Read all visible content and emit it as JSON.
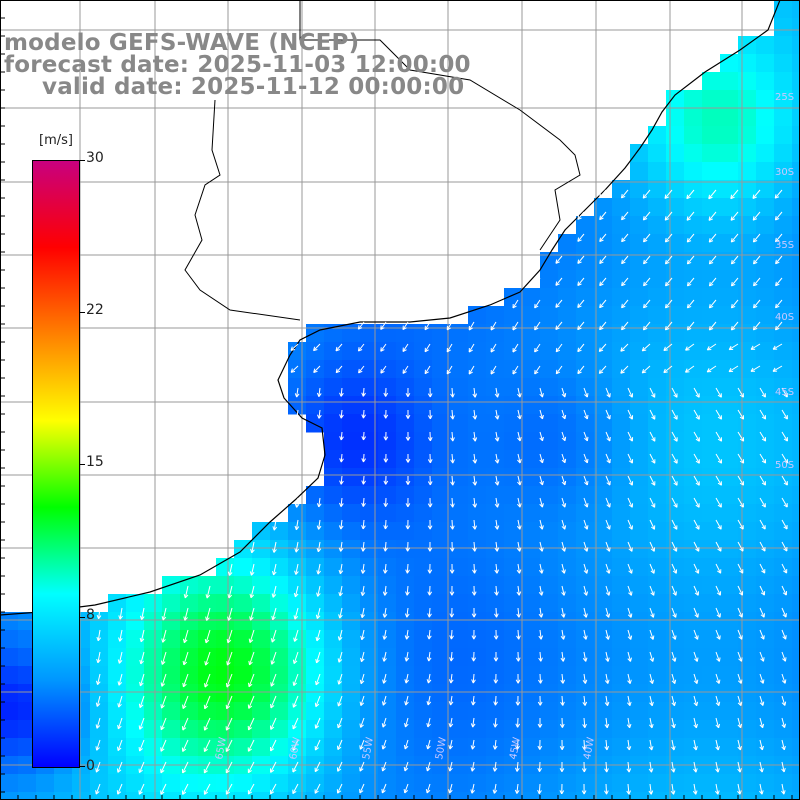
{
  "titles": {
    "line1": "modelo GEFS-WAVE (NCEP)",
    "line2": "forecast date: 2025-11-03 12:00:00",
    "line3": "valid date: 2025-11-12 00:00:00"
  },
  "colorbar": {
    "unit": "[m/s]",
    "ticks": [
      "30",
      "22",
      "15",
      "8",
      "0"
    ],
    "tick_values": [
      30,
      22,
      15,
      8,
      0
    ],
    "range": [
      0,
      30
    ],
    "colors": [
      "#0000ff",
      "#0096ff",
      "#00ffff",
      "#00ff00",
      "#ffff00",
      "#ff8000",
      "#ff0000",
      "#c8007f"
    ]
  },
  "map": {
    "field": "wind speed and direction",
    "land_color": "#ffffff",
    "coastline_color": "#000000",
    "grid_color": "#999999",
    "arrow_color": "#ffffff",
    "lon_labels": [
      "65W",
      "60W",
      "55W",
      "50W",
      "45W",
      "40W"
    ],
    "lat_labels": [
      "25S",
      "30S",
      "35S",
      "40S",
      "45S",
      "50S"
    ]
  }
}
